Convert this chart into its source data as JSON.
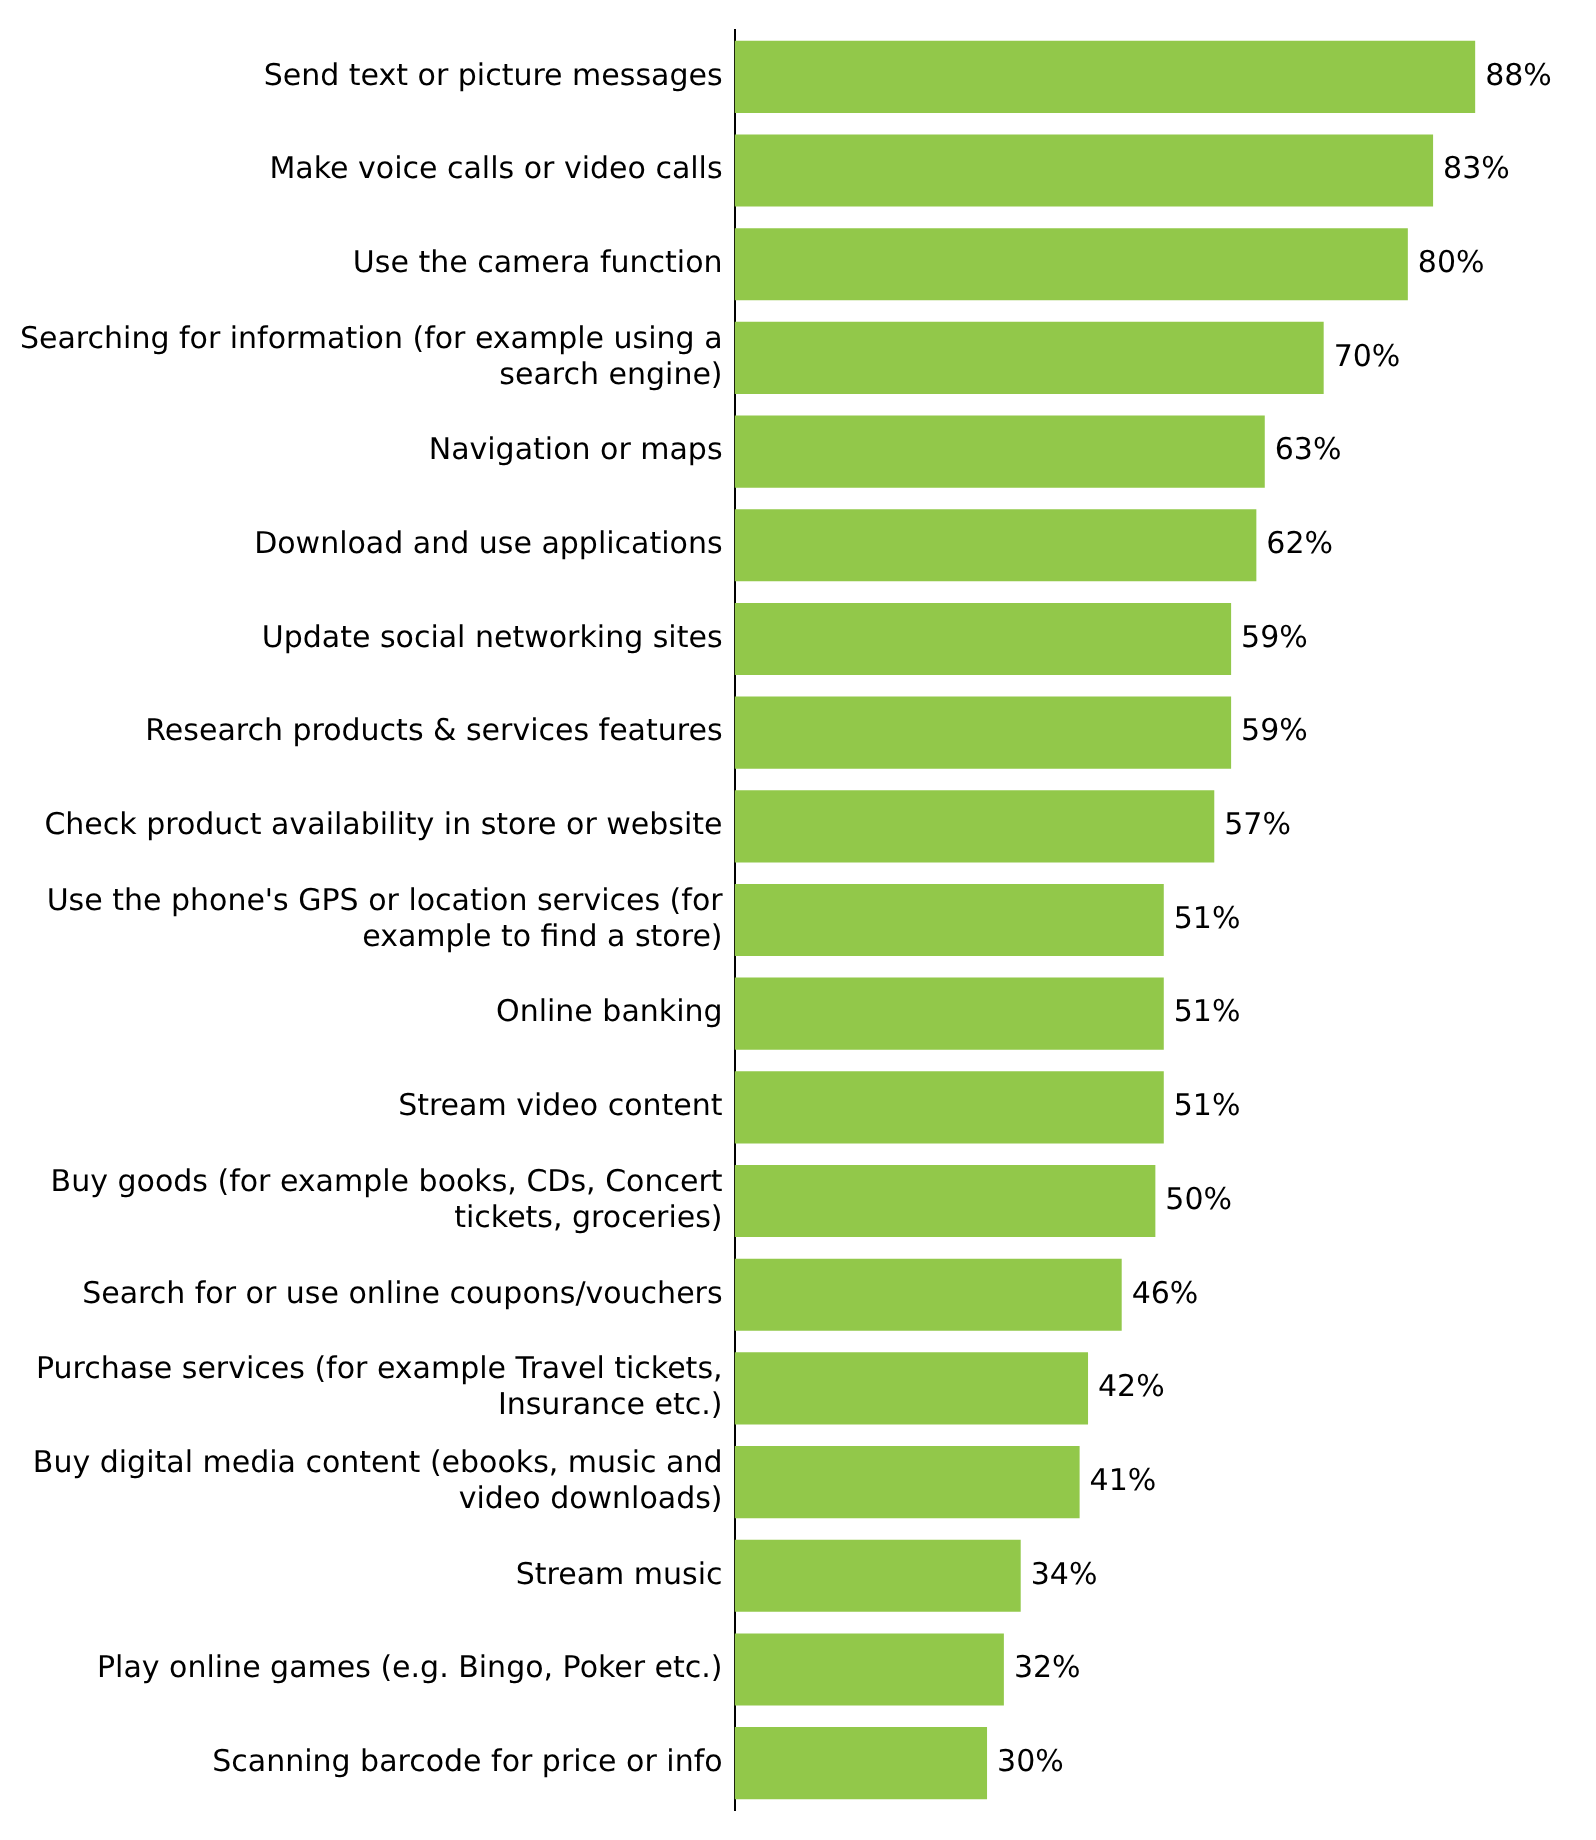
{
  "chart_data": {
    "type": "bar",
    "orientation": "horizontal",
    "categories": [
      "Send text or picture messages",
      "Make voice calls or video calls",
      "Use the camera function",
      "Searching for information (for example using a search engine)",
      "Navigation or maps",
      "Download and use applications",
      "Update social networking sites",
      "Research products & services features",
      "Check product availability in store or website",
      "Use the phone's GPS or location services (for example to find a store)",
      "Online banking",
      "Stream video content",
      "Buy goods (for example books, CDs, Concert tickets, groceries)",
      "Search for or use online coupons/vouchers",
      "Purchase services (for example Travel tickets, Insurance etc.)",
      "Buy digital media content (ebooks, music and video downloads)",
      "Stream music",
      "Play online games (e.g. Bingo, Poker etc.)",
      "Scanning barcode for price or info"
    ],
    "values": [
      88,
      83,
      80,
      70,
      63,
      62,
      59,
      59,
      57,
      51,
      51,
      51,
      50,
      46,
      42,
      41,
      34,
      32,
      30
    ],
    "value_labels": [
      "88%",
      "83%",
      "80%",
      "70%",
      "63%",
      "62%",
      "59%",
      "59%",
      "57%",
      "51%",
      "51%",
      "51%",
      "50%",
      "46%",
      "42%",
      "41%",
      "34%",
      "32%",
      "30%"
    ],
    "color": "#92c84a",
    "legend": false,
    "tick_labels": "y"
  }
}
